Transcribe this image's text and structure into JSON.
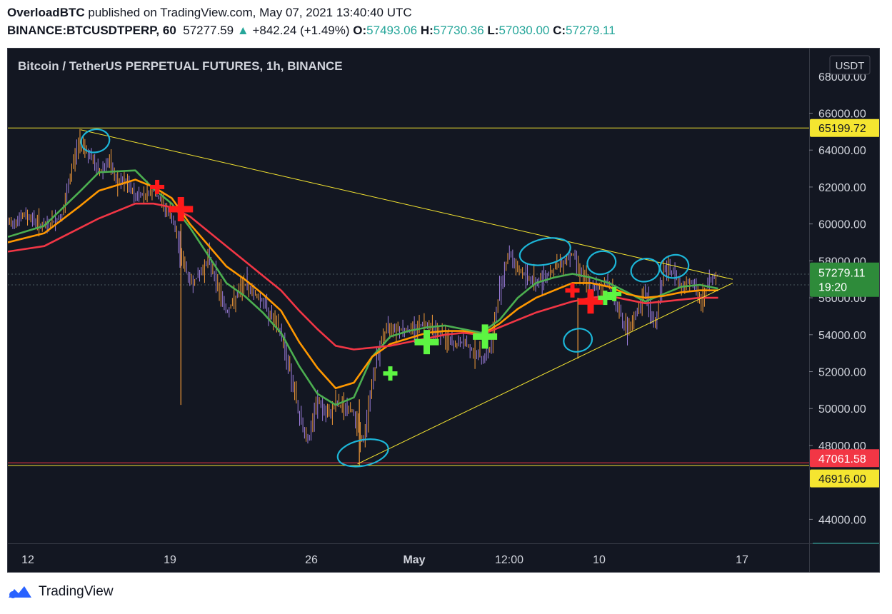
{
  "header": {
    "author": "OverloadBTC",
    "published_text": "published on TradingView.com, May 07, 2021 13:40:40 UTC",
    "symbol": "BINANCE:BTCUSDTPERP, 60",
    "last": "57277.59",
    "change": "+842.24 (+1.49%)",
    "o_label": "O:",
    "o": "57493.06",
    "h_label": "H:",
    "h": "57730.36",
    "l_label": "L:",
    "l": "57030.00",
    "c_label": "C:",
    "c": "57279.11"
  },
  "chart_title": "Bitcoin / TetherUS PERPETUAL FUTURES, 1h, BINANCE",
  "currency_button": "USDT",
  "footer": {
    "brand": "TradingView"
  },
  "colors": {
    "background": "#131722",
    "ema_fast": "#4caf50",
    "ema_mid": "#ff9800",
    "ema_slow": "#f23645",
    "candle": "#9c7ddc",
    "wick": "#f29a38",
    "trendline": "#f5e530",
    "annotation_circle": "#1cb6d8",
    "buy_marker": "#5df542",
    "sell_marker": "#ff1a1a",
    "price_badge": "#2e8b3a"
  },
  "chart_data": {
    "type": "line",
    "x_ticks": [
      "12",
      "19",
      "26",
      "May",
      "12:00",
      "10",
      "17"
    ],
    "y_ticks": [
      "44000.00",
      "48000.00",
      "50000.00",
      "52000.00",
      "54000.00",
      "56000.00",
      "58000.00",
      "60000.00",
      "62000.00",
      "64000.00",
      "66000.00"
    ],
    "y_top_partial": "68000.00",
    "price_labels": {
      "resistance": "65199.72",
      "support_red": "47061.58",
      "support_yellow": "46916.00",
      "current": "57279.11",
      "countdown": "19:20"
    },
    "x_range": [
      0,
      44
    ],
    "y_range": [
      42700,
      69500
    ],
    "series": [
      {
        "key": "price",
        "x": [
          0,
          1,
          2,
          3,
          3.6,
          4,
          4.4,
          5,
          5.5,
          6,
          6.5,
          7,
          8,
          9,
          9.5,
          10,
          10.5,
          11,
          12,
          13,
          14,
          15,
          15.5,
          16,
          16.5,
          17,
          17.5,
          18,
          19,
          19.5,
          20,
          20.5,
          21,
          22,
          23,
          24,
          24.5,
          25,
          26,
          26.5,
          27,
          27.5,
          28,
          29,
          30,
          31,
          32,
          33,
          34,
          35,
          35.5,
          36,
          36.5,
          37,
          37.5,
          38,
          38.5,
          39
        ],
        "y": [
          60000,
          60500,
          59800,
          60500,
          63500,
          64600,
          63800,
          62800,
          63400,
          62200,
          62200,
          61500,
          61800,
          60300,
          58300,
          56800,
          57200,
          58200,
          55200,
          56800,
          55800,
          54000,
          52000,
          49500,
          48200,
          50500,
          49500,
          50300,
          49800,
          48000,
          51500,
          53800,
          54500,
          54200,
          54700,
          53800,
          53400,
          53600,
          52700,
          53200,
          56500,
          58500,
          57500,
          56800,
          57600,
          58400,
          56300,
          56900,
          54000,
          56300,
          54300,
          57500,
          57400,
          56600,
          57000,
          55700,
          56900,
          57280
        ]
      },
      {
        "key": "ema_fast",
        "name": "",
        "x": [
          0,
          2,
          4,
          5,
          7,
          8,
          9,
          10,
          12,
          13,
          14,
          15,
          16,
          17,
          18,
          19,
          20,
          21,
          22,
          23,
          24,
          25,
          26,
          27,
          28,
          29,
          30,
          31,
          32,
          33,
          34,
          35,
          36,
          37,
          38,
          39
        ],
        "y": [
          59300,
          59900,
          61800,
          62800,
          62900,
          61900,
          61100,
          59800,
          56800,
          56100,
          55200,
          54100,
          52300,
          50800,
          50200,
          50600,
          52800,
          53900,
          54200,
          54400,
          54500,
          54300,
          54100,
          54800,
          56000,
          56800,
          57100,
          57300,
          57100,
          56800,
          56300,
          55800,
          56200,
          56600,
          56700,
          56500
        ]
      },
      {
        "key": "ema_mid",
        "name": "",
        "x": [
          0,
          2,
          4,
          5,
          7,
          8,
          9,
          10,
          12,
          13,
          14,
          15,
          16,
          17,
          18,
          19,
          20,
          21,
          22,
          23,
          24,
          25,
          26,
          27,
          28,
          29,
          30,
          31,
          32,
          33,
          34,
          35,
          36,
          37,
          38,
          39
        ],
        "y": [
          59000,
          59500,
          61000,
          61800,
          62400,
          62000,
          61400,
          60000,
          57700,
          57000,
          56200,
          55300,
          53600,
          52200,
          51100,
          51400,
          52800,
          53500,
          53800,
          54100,
          54200,
          54200,
          54000,
          54600,
          55400,
          56000,
          56400,
          56800,
          56800,
          56600,
          56200,
          56000,
          56100,
          56300,
          56400,
          56400
        ]
      },
      {
        "key": "ema_slow",
        "name": "",
        "x": [
          0,
          2,
          4,
          5,
          7,
          8,
          9,
          10,
          12,
          13,
          14,
          15,
          16,
          17,
          18,
          19,
          20,
          21,
          22,
          23,
          24,
          25,
          26,
          27,
          28,
          29,
          30,
          31,
          32,
          33,
          34,
          35,
          36,
          37,
          38,
          39
        ],
        "y": [
          58500,
          58800,
          59800,
          60300,
          61100,
          61100,
          60900,
          60400,
          58800,
          58000,
          57200,
          56400,
          55300,
          54300,
          53400,
          53200,
          53300,
          53400,
          53600,
          53800,
          54000,
          54100,
          54000,
          54400,
          54800,
          55200,
          55500,
          55800,
          56000,
          56100,
          55900,
          55700,
          55800,
          55900,
          56000,
          56000
        ]
      }
    ],
    "levels": [
      65199.72,
      47061.58,
      46916.0
    ],
    "trendlines": [
      {
        "x1": 4,
        "y1": 65100,
        "x2": 39.8,
        "y2": 57000
      },
      {
        "x1": 19.2,
        "y1": 47000,
        "x2": 39.8,
        "y2": 56800
      }
    ],
    "circles": [
      {
        "x": 4.8,
        "y": 64500
      },
      {
        "x": 19.5,
        "y": 47600
      },
      {
        "x": 29.5,
        "y": 58500
      },
      {
        "x": 32.6,
        "y": 57900
      },
      {
        "x": 35,
        "y": 57500
      },
      {
        "x": 31.3,
        "y": 53700
      },
      {
        "x": 36.6,
        "y": 57700
      }
    ],
    "sell_markers": [
      {
        "x": 8.2,
        "y": 62000,
        "s": "small"
      },
      {
        "x": 9.5,
        "y": 60800,
        "s": "big"
      },
      {
        "x": 31,
        "y": 56400,
        "s": "small"
      },
      {
        "x": 32,
        "y": 55800,
        "s": "big"
      }
    ],
    "buy_markers": [
      {
        "x": 21,
        "y": 51900,
        "s": "small"
      },
      {
        "x": 23,
        "y": 53600,
        "s": "big"
      },
      {
        "x": 26.2,
        "y": 53900,
        "s": "big"
      },
      {
        "x": 32.8,
        "y": 56000,
        "s": "small"
      },
      {
        "x": 33.3,
        "y": 56200,
        "s": "small"
      }
    ]
  }
}
